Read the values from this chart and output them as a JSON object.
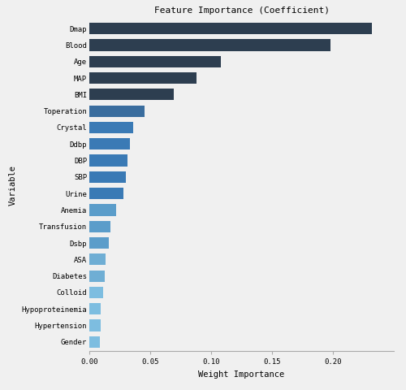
{
  "title": "Feature Importance (Coefficient)",
  "xlabel": "Weight Importance",
  "ylabel": "Variable",
  "features": [
    "Gender",
    "Hypertension",
    "Hypoproteinemia",
    "Colloid",
    "Diabetes",
    "ASA",
    "Dsbp",
    "Transfusion",
    "Anemia",
    "Urine",
    "SBP",
    "DBP",
    "Ddbp",
    "Crystal",
    "Toperation",
    "BMI",
    "MAP",
    "Age",
    "Blood",
    "Dmap"
  ],
  "values": [
    0.0085,
    0.009,
    0.0095,
    0.0115,
    0.0125,
    0.0135,
    0.016,
    0.0175,
    0.022,
    0.028,
    0.03,
    0.031,
    0.0335,
    0.036,
    0.045,
    0.069,
    0.088,
    0.108,
    0.198,
    0.232
  ],
  "colors": {
    "Dmap": "#2d3e50",
    "Blood": "#2d3e50",
    "Age": "#2d3e50",
    "MAP": "#2d3e50",
    "BMI": "#2d3e50",
    "Toperation": "#3a6d9e",
    "Crystal": "#3a7ab5",
    "Ddbp": "#3a7ab5",
    "DBP": "#3a7ab5",
    "SBP": "#3a7ab5",
    "Urine": "#3a7ab5",
    "Anemia": "#5b9dca",
    "Transfusion": "#5b9dca",
    "Dsbp": "#5b9dca",
    "ASA": "#6faed4",
    "Diabetes": "#6faed4",
    "Colloid": "#7dbde0",
    "Hypoproteinemia": "#7dbde0",
    "Hypertension": "#7dbde0",
    "Gender": "#7dbde0"
  },
  "xlim": [
    0,
    0.25
  ],
  "xticks": [
    0.0,
    0.05,
    0.1,
    0.15,
    0.2
  ],
  "background_color": "#f0f0f0",
  "plot_background": "#f0f0f0",
  "title_fontsize": 8,
  "label_fontsize": 7.5,
  "tick_fontsize": 6.5,
  "bar_height": 0.7
}
